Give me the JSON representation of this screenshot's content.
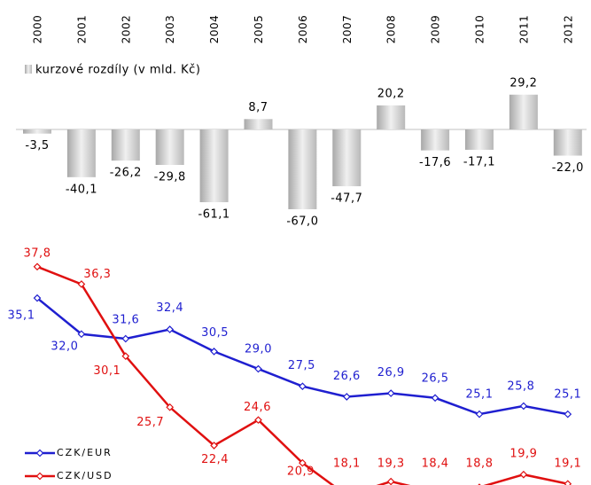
{
  "chart_data": [
    {
      "type": "bar",
      "legend": "kurzové rozdíly (v mld. Kč)",
      "categories": [
        "2000",
        "2001",
        "2002",
        "2003",
        "2004",
        "2005",
        "2006",
        "2007",
        "2008",
        "2009",
        "2010",
        "2011",
        "2012"
      ],
      "values": [
        -3.5,
        -40.1,
        -26.2,
        -29.8,
        -61.1,
        8.7,
        -67.0,
        -47.7,
        20.2,
        -17.6,
        -17.1,
        29.2,
        -22.0
      ],
      "value_labels": [
        "-3,5",
        "-40,1",
        "-26,2",
        "-29,8",
        "-61,1",
        "8,7",
        "-67,0",
        "-47,7",
        "20,2",
        "-17,6",
        "-17,1",
        "29,2",
        "-22,0"
      ],
      "color": "#c8c8c8",
      "ylim": [
        -70,
        32
      ]
    },
    {
      "type": "line",
      "ylim": [
        19,
        40
      ],
      "series": [
        {
          "name": "CZK/EUR",
          "color": "#1f1fd0",
          "values": [
            35.1,
            32.0,
            31.6,
            32.4,
            30.5,
            29.0,
            27.5,
            26.6,
            26.9,
            26.5,
            25.1,
            25.8,
            25.1
          ],
          "value_labels": [
            "35,1",
            "32,0",
            "31,6",
            "32,4",
            "30,5",
            "29,0",
            "27,5",
            "26,6",
            "26,9",
            "26,5",
            "25,1",
            "25,8",
            "25,1"
          ]
        },
        {
          "name": "CZK/USD",
          "color": "#e01010",
          "values": [
            37.8,
            36.3,
            30.1,
            25.7,
            22.4,
            24.6,
            20.9,
            18.1,
            19.3,
            18.4,
            18.8,
            19.9,
            19.1
          ],
          "value_labels": [
            "37,8",
            "36,3",
            "30,1",
            "25,7",
            "22,4",
            "24,6",
            "20,9",
            "18,1",
            "19,3",
            "18,4",
            "18,8",
            "19,9",
            "19,1"
          ]
        }
      ]
    }
  ]
}
